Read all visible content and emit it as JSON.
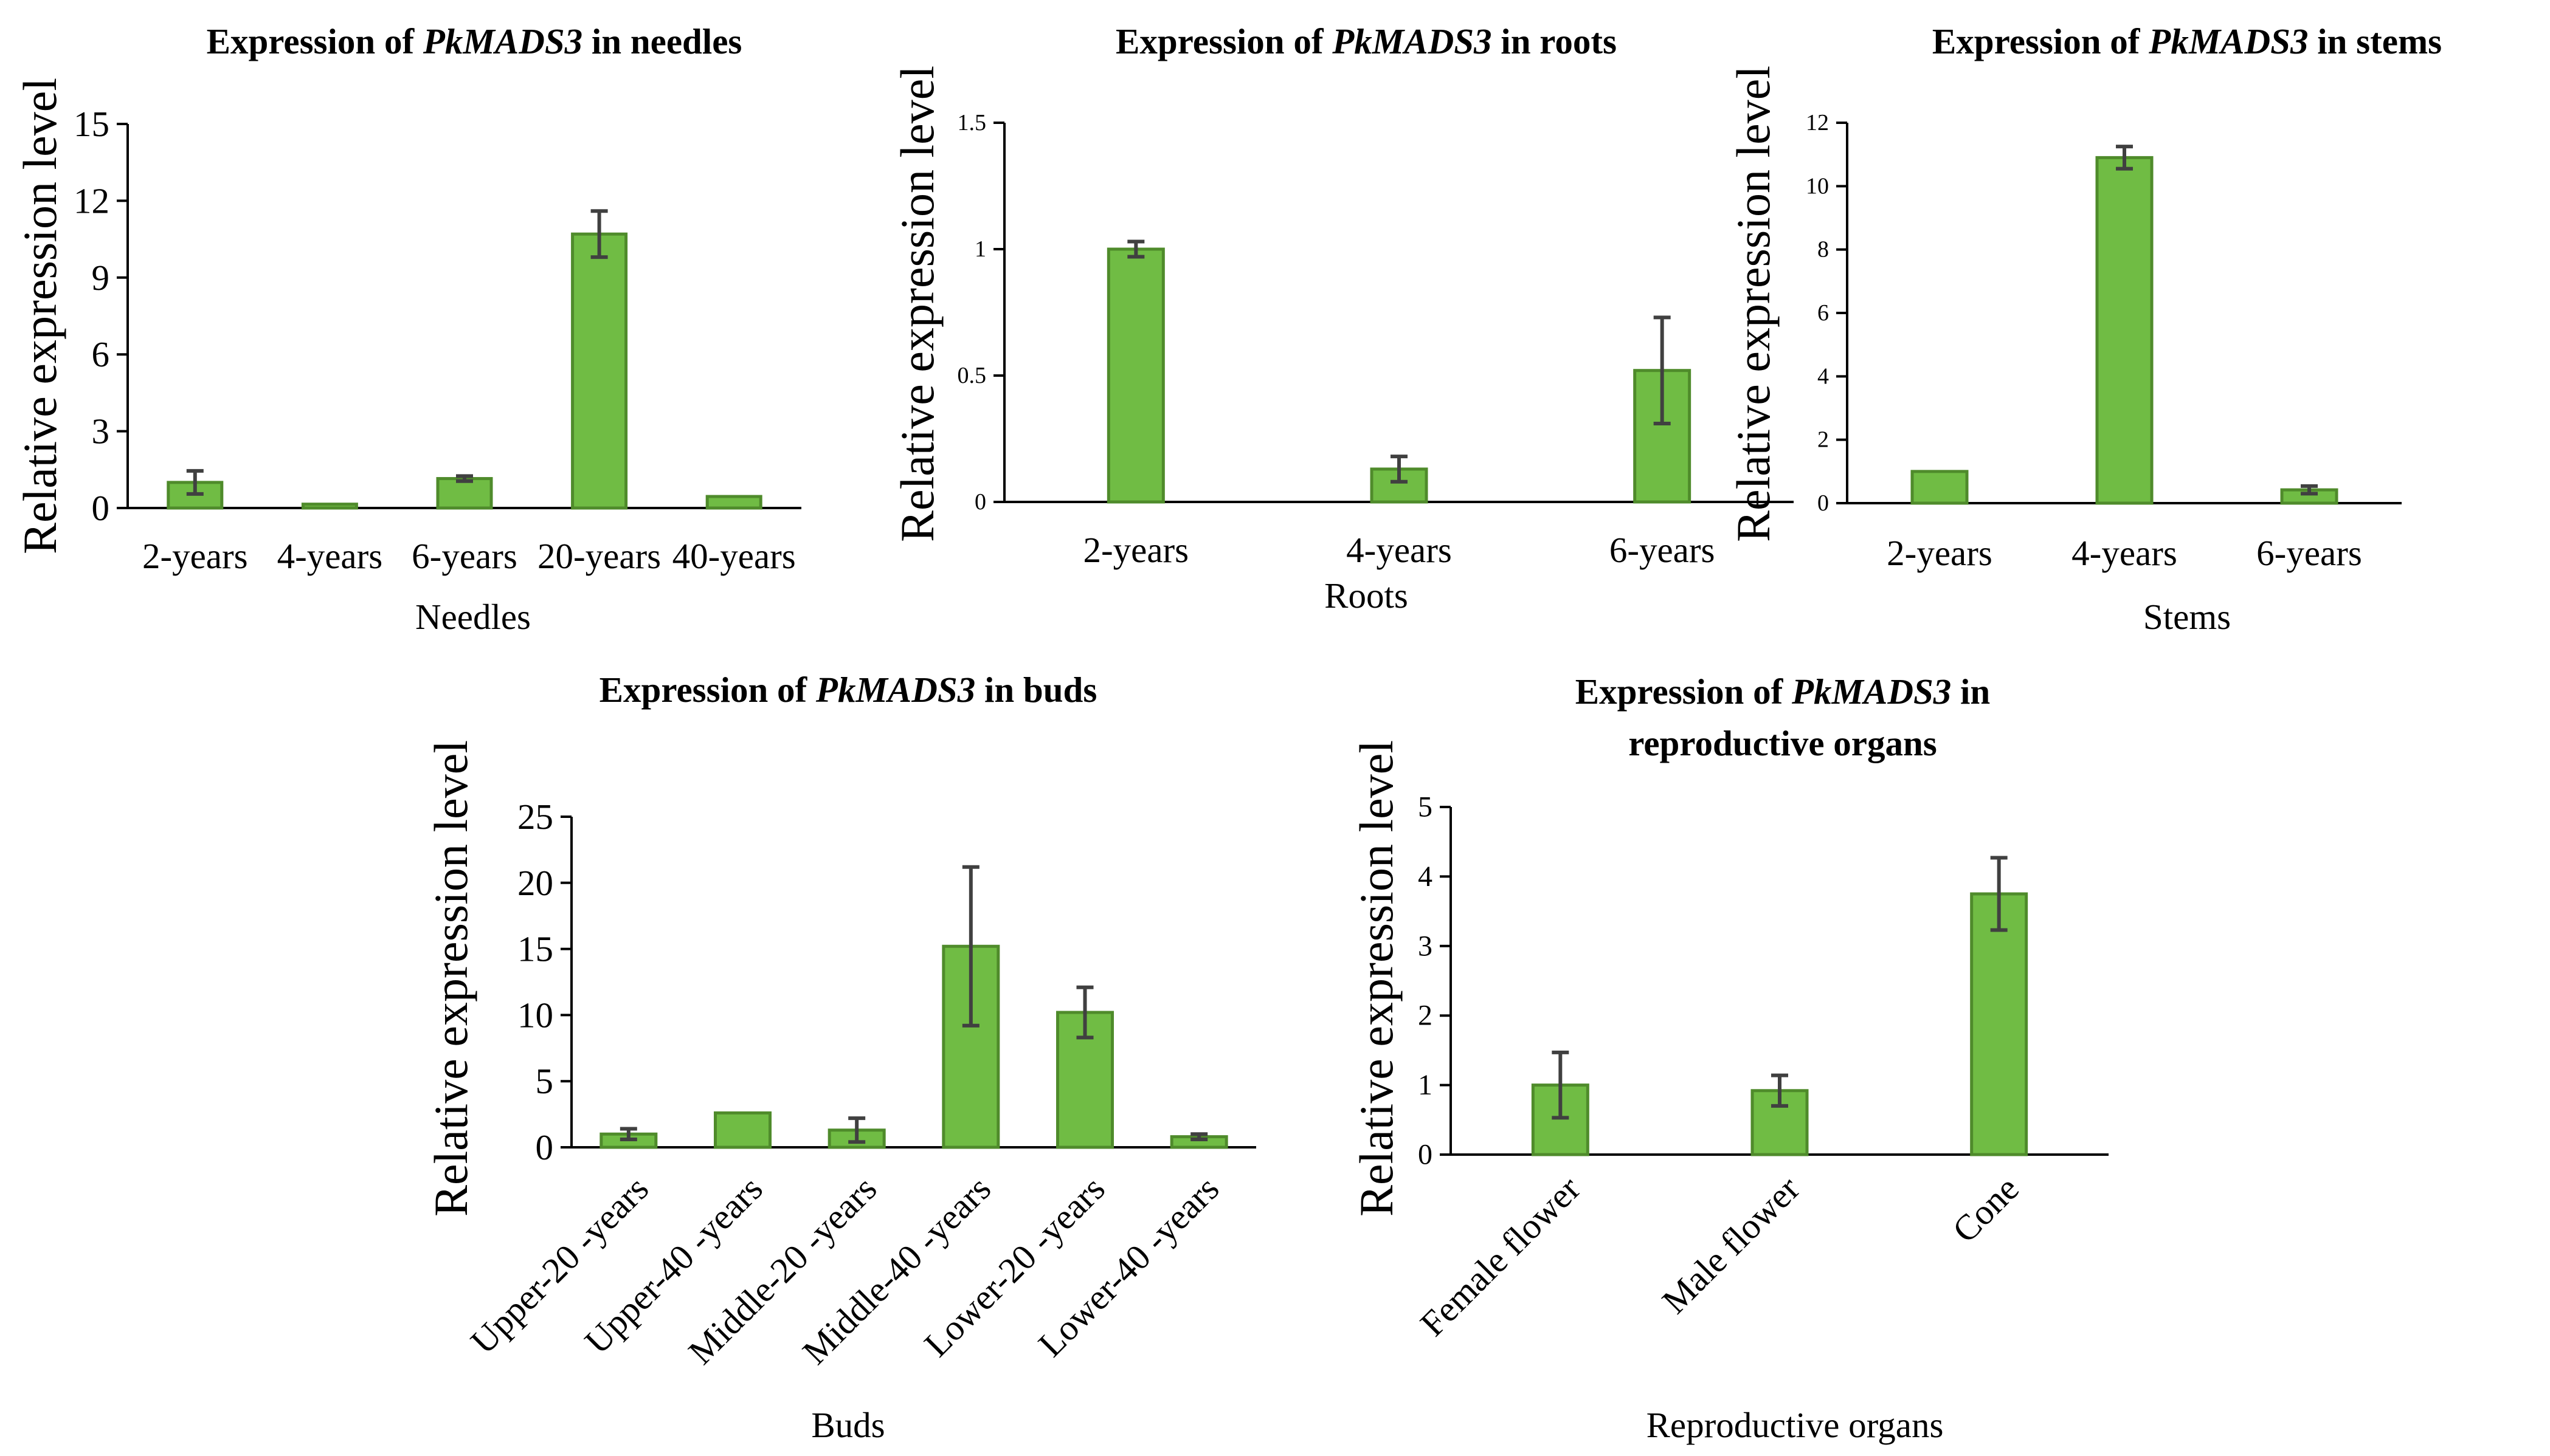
{
  "chart_data": [
    {
      "id": "needles",
      "type": "bar",
      "title": "Expression of <i>PkMADS3</i> in needles",
      "title_lines": [
        {
          "prefix": "Expression of ",
          "gene": "PkMADS3",
          "suffix": " in needles"
        }
      ],
      "xlabel": "Needles",
      "ylabel": "Relative expression level",
      "categories": [
        "2-years",
        "4-years",
        "6-years",
        "20-years",
        "40-years"
      ],
      "values": [
        1.0,
        0.15,
        1.15,
        10.7,
        0.45
      ],
      "errors": [
        0.45,
        0.0,
        0.1,
        0.9,
        0.0
      ],
      "ylim": [
        0,
        15
      ],
      "yticks": [
        0,
        3,
        6,
        9,
        12,
        15
      ],
      "ytick_labels": [
        "0",
        "3",
        "6",
        "9",
        "12",
        "15"
      ],
      "color": "#70bc44",
      "edge_color": "#4f8b2b"
    },
    {
      "id": "roots",
      "type": "bar",
      "title_lines": [
        {
          "prefix": "Expression of ",
          "gene": "PkMADS3",
          "suffix": " in roots"
        }
      ],
      "xlabel": "Roots",
      "ylabel": "Relative expression level",
      "categories": [
        "2-years",
        "4-years",
        "6-years"
      ],
      "values": [
        1.0,
        0.13,
        0.52
      ],
      "errors": [
        0.03,
        0.05,
        0.21
      ],
      "ylim": [
        0,
        1.5
      ],
      "yticks": [
        0,
        0.5,
        1,
        1.5
      ],
      "ytick_labels": [
        "0",
        "0.5",
        "1",
        "1.5"
      ],
      "color": "#70bc44",
      "edge_color": "#4f8b2b"
    },
    {
      "id": "stems",
      "type": "bar",
      "title_lines": [
        {
          "prefix": "Expression of ",
          "gene": "PkMADS3",
          "suffix": " in stems"
        }
      ],
      "xlabel": "Stems",
      "ylabel": "Relative expression level",
      "categories": [
        "2-years",
        "4-years",
        "6-years"
      ],
      "values": [
        1.0,
        10.9,
        0.42
      ],
      "errors": [
        0.0,
        0.35,
        0.12
      ],
      "ylim": [
        0,
        12
      ],
      "yticks": [
        0,
        2,
        4,
        6,
        8,
        10,
        12
      ],
      "ytick_labels": [
        "0",
        "2",
        "4",
        "6",
        "8",
        "10",
        "12"
      ],
      "color": "#70bc44",
      "edge_color": "#4f8b2b"
    },
    {
      "id": "buds",
      "type": "bar",
      "title_lines": [
        {
          "prefix": "Expression of ",
          "gene": "PkMADS3",
          "suffix": " in buds"
        }
      ],
      "xlabel": "Buds",
      "ylabel": "Relative expression level",
      "categories": [
        "Upper-20 -years",
        "Upper-40 -years",
        "Middle-20 -years",
        "Middle-40 -years",
        "Lower-20 -years",
        "Lower-40 -years"
      ],
      "values": [
        1.0,
        2.6,
        1.3,
        15.2,
        10.2,
        0.8
      ],
      "errors": [
        0.4,
        0.0,
        0.9,
        6.0,
        1.9,
        0.2
      ],
      "ylim": [
        0,
        25
      ],
      "yticks": [
        0,
        5,
        10,
        15,
        20,
        25
      ],
      "ytick_labels": [
        "0",
        "5",
        "10",
        "15",
        "20",
        "25"
      ],
      "color": "#70bc44",
      "edge_color": "#4f8b2b"
    },
    {
      "id": "reproductive",
      "type": "bar",
      "title_lines": [
        {
          "prefix": "Expression of ",
          "gene": "PkMADS3",
          "suffix": " in"
        },
        {
          "prefix": "reproductive organs",
          "gene": "",
          "suffix": ""
        }
      ],
      "xlabel": "Reproductive organs",
      "ylabel": "Relative expression level",
      "categories": [
        "Female flower",
        "Male flower",
        "Cone"
      ],
      "values": [
        1.0,
        0.92,
        3.75
      ],
      "errors": [
        0.47,
        0.22,
        0.52
      ],
      "ylim": [
        0,
        5
      ],
      "yticks": [
        0,
        1,
        2,
        3,
        4,
        5
      ],
      "ytick_labels": [
        "0",
        "1",
        "2",
        "3",
        "4",
        "5"
      ],
      "color": "#70bc44",
      "edge_color": "#4f8b2b"
    }
  ]
}
